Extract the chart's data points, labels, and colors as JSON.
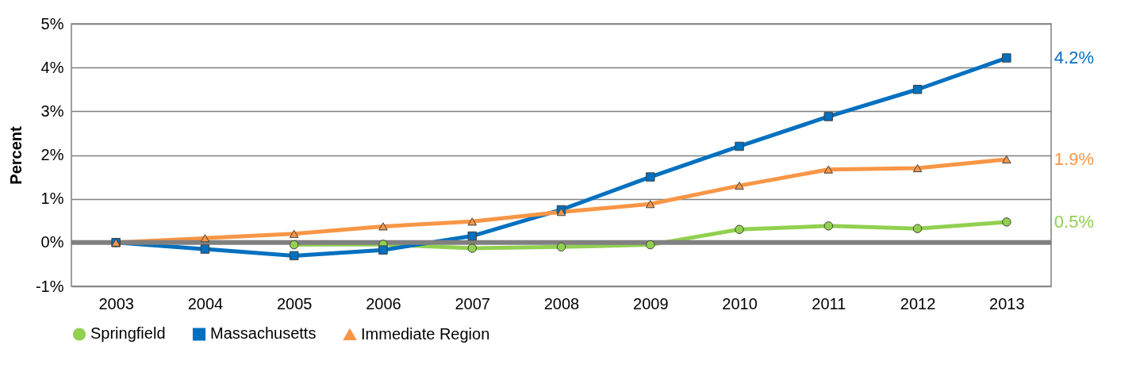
{
  "chart_data": {
    "type": "line",
    "ylabel": "Percent",
    "categories": [
      "2003",
      "2004",
      "2005",
      "2006",
      "2007",
      "2008",
      "2009",
      "2010",
      "2011",
      "2012",
      "2013"
    ],
    "series": [
      {
        "name": "Springfield",
        "color": "#92d050",
        "marker": "circle",
        "values": [
          0,
          null,
          -0.05,
          -0.04,
          -0.13,
          -0.1,
          -0.05,
          0.3,
          0.38,
          0.32,
          0.47
        ]
      },
      {
        "name": "Massachusetts",
        "color": "#0070c0",
        "marker": "square",
        "values": [
          0,
          -0.15,
          -0.3,
          -0.17,
          0.15,
          0.75,
          1.5,
          2.2,
          2.88,
          3.5,
          4.22
        ]
      },
      {
        "name": "Immediate Region",
        "color": "#f79646",
        "marker": "triangle",
        "values": [
          0,
          0.1,
          0.2,
          0.37,
          0.48,
          0.7,
          0.88,
          1.3,
          1.67,
          1.7,
          1.9
        ]
      }
    ],
    "ylim": [
      -1,
      5
    ],
    "yticks": [
      {
        "value": -1,
        "label": "-1%"
      },
      {
        "value": 0,
        "label": "0%"
      },
      {
        "value": 1,
        "label": "1%"
      },
      {
        "value": 2,
        "label": "2%"
      },
      {
        "value": 3,
        "label": "3%"
      },
      {
        "value": 4,
        "label": "4%"
      },
      {
        "value": 5,
        "label": "5%"
      }
    ],
    "grid": "y",
    "legend": "bottom",
    "line_style": "solid",
    "ref_lines": [
      {
        "axis": "y",
        "value": 0,
        "color": "#808080"
      }
    ],
    "annotations": [
      {
        "text": "0.5%",
        "x": "2013",
        "y": 0.47
      },
      {
        "text": "4.2%",
        "x": "2013",
        "y": 4.22
      },
      {
        "text": "1.9%",
        "x": "2013",
        "y": 1.9
      }
    ]
  }
}
